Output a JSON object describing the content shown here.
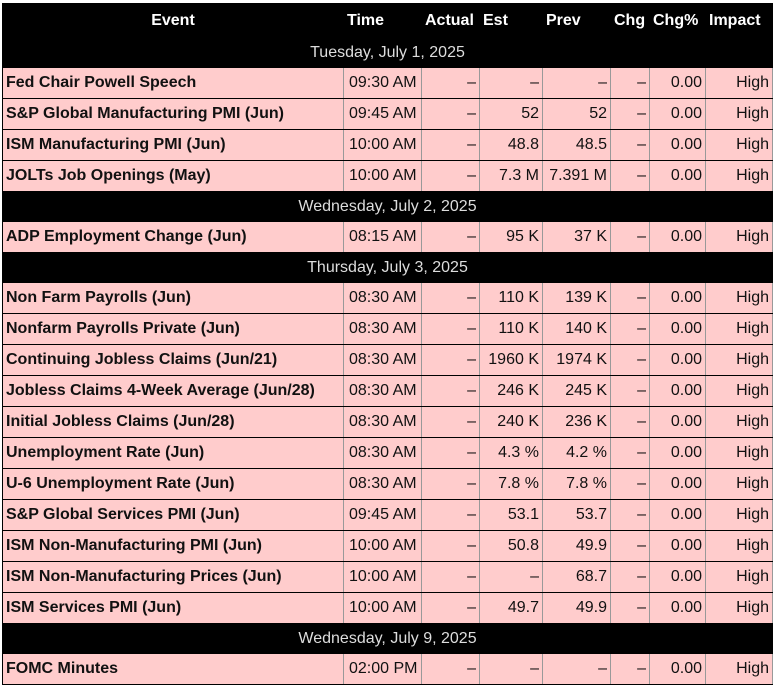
{
  "columns": [
    "Event",
    "Time",
    "Actual",
    "Est",
    "Prev",
    "Chg",
    "Chg%",
    "Impact"
  ],
  "groups": [
    {
      "date": "Tuesday, July 1, 2025",
      "rows": [
        [
          "Fed Chair Powell Speech",
          "09:30 AM",
          "–",
          "–",
          "–",
          "–",
          "0.00",
          "High"
        ],
        [
          "S&P Global Manufacturing PMI (Jun)",
          "09:45 AM",
          "–",
          "52",
          "52",
          "–",
          "0.00",
          "High"
        ],
        [
          "ISM Manufacturing PMI (Jun)",
          "10:00 AM",
          "–",
          "48.8",
          "48.5",
          "–",
          "0.00",
          "High"
        ],
        [
          "JOLTs Job Openings (May)",
          "10:00 AM",
          "–",
          "7.3 M",
          "7.391 M",
          "–",
          "0.00",
          "High"
        ]
      ]
    },
    {
      "date": "Wednesday, July 2, 2025",
      "rows": [
        [
          "ADP Employment Change (Jun)",
          "08:15 AM",
          "–",
          "95 K",
          "37 K",
          "–",
          "0.00",
          "High"
        ]
      ]
    },
    {
      "date": "Thursday, July 3, 2025",
      "rows": [
        [
          "Non Farm Payrolls (Jun)",
          "08:30 AM",
          "–",
          "110 K",
          "139 K",
          "–",
          "0.00",
          "High"
        ],
        [
          "Nonfarm Payrolls Private (Jun)",
          "08:30 AM",
          "–",
          "110 K",
          "140 K",
          "–",
          "0.00",
          "High"
        ],
        [
          "Continuing Jobless Claims (Jun/21)",
          "08:30 AM",
          "–",
          "1960 K",
          "1974 K",
          "–",
          "0.00",
          "High"
        ],
        [
          "Jobless Claims 4-Week Average (Jun/28)",
          "08:30 AM",
          "–",
          "246 K",
          "245 K",
          "–",
          "0.00",
          "High"
        ],
        [
          "Initial Jobless Claims (Jun/28)",
          "08:30 AM",
          "–",
          "240 K",
          "236 K",
          "–",
          "0.00",
          "High"
        ],
        [
          "Unemployment Rate (Jun)",
          "08:30 AM",
          "–",
          "4.3 %",
          "4.2 %",
          "–",
          "0.00",
          "High"
        ],
        [
          "U-6 Unemployment Rate (Jun)",
          "08:30 AM",
          "–",
          "7.8 %",
          "7.8 %",
          "–",
          "0.00",
          "High"
        ],
        [
          "S&P Global Services PMI (Jun)",
          "09:45 AM",
          "–",
          "53.1",
          "53.7",
          "–",
          "0.00",
          "High"
        ],
        [
          "ISM Non-Manufacturing PMI (Jun)",
          "10:00 AM",
          "–",
          "50.8",
          "49.9",
          "–",
          "0.00",
          "High"
        ],
        [
          "ISM Non-Manufacturing Prices (Jun)",
          "10:00 AM",
          "–",
          "–",
          "68.7",
          "–",
          "0.00",
          "High"
        ],
        [
          "ISM Services PMI (Jun)",
          "10:00 AM",
          "–",
          "49.7",
          "49.9",
          "–",
          "0.00",
          "High"
        ]
      ]
    },
    {
      "date": "Wednesday, July 9, 2025",
      "rows": [
        [
          "FOMC Minutes",
          "02:00 PM",
          "–",
          "–",
          "–",
          "–",
          "0.00",
          "High"
        ]
      ]
    }
  ],
  "colors": {
    "header_bg": "#000000",
    "row_bg": "#ffcccc",
    "header_text": "#ffffff"
  }
}
